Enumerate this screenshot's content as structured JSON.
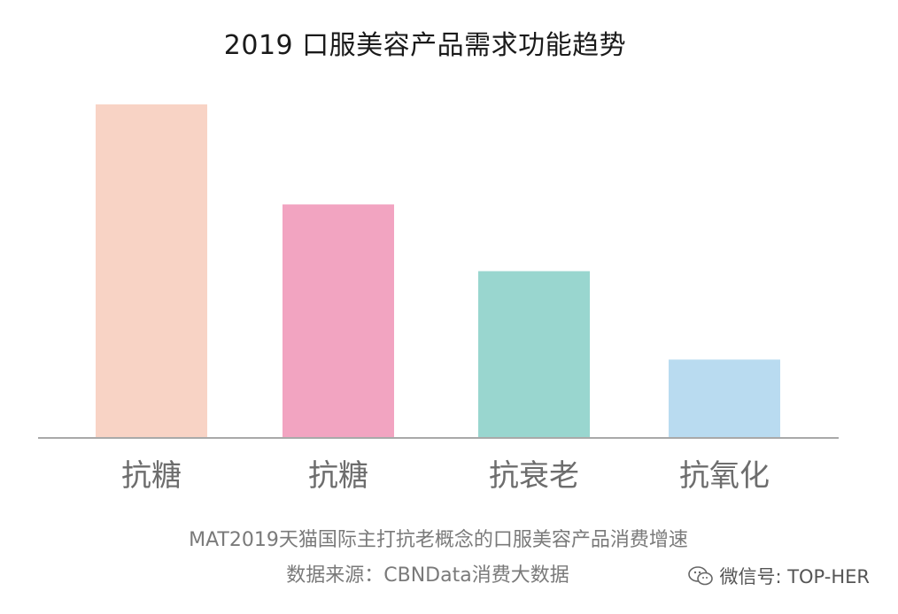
{
  "chart_data": {
    "type": "bar",
    "title": "2019 口服美容产品需求功能趋势",
    "categories": [
      "抗糖",
      "抗糖",
      "抗衰老",
      "抗氧化"
    ],
    "values": [
      100,
      70,
      50,
      23.5
    ],
    "colors": [
      "#f8d3c5",
      "#f2a4c1",
      "#99d6cf",
      "#b9dbf0"
    ],
    "xlabel": "",
    "ylabel": "",
    "ylim": [
      0,
      100
    ],
    "grid": false,
    "axis_color": "#a9a9a9"
  },
  "caption": {
    "line1": "MAT2019天猫国际主打抗老概念的口服美容产品消费增速",
    "line2": "数据来源：CBNData消费大数据"
  },
  "watermark": {
    "icon": "wechat-icon",
    "text": "微信号: TOP-HER"
  }
}
